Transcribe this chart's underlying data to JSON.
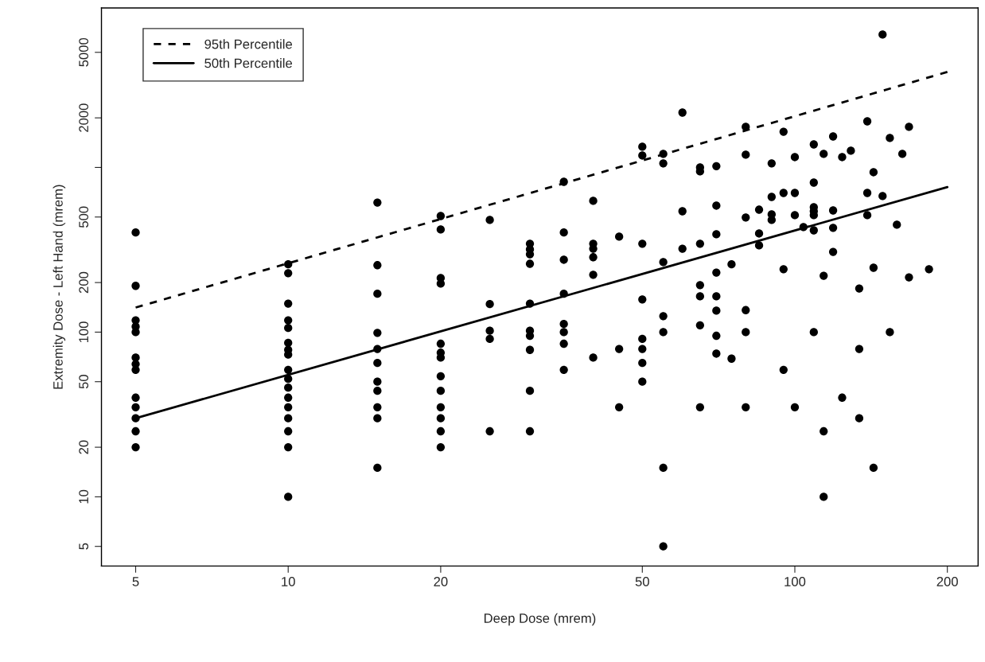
{
  "chart_data": {
    "type": "scatter",
    "xlabel": "Deep Dose (mrem)",
    "ylabel": "Extremity Dose - Left Hand (mrem)",
    "log": "xy",
    "xlim": [
      4.28,
      230
    ],
    "ylim": [
      3.8,
      9300
    ],
    "xticks": [
      5,
      10,
      20,
      50,
      100,
      200
    ],
    "yticks": [
      5,
      10,
      20,
      50,
      100,
      200,
      500,
      {
        "value": 1000,
        "label": null
      },
      2000,
      5000
    ],
    "grid": false,
    "legend": "top left",
    "marker": "circle",
    "series": [
      {
        "color": "#000000",
        "x": [
          5,
          5,
          5,
          5,
          5,
          5,
          5,
          5,
          5,
          5,
          5,
          5,
          5,
          10,
          10,
          10,
          10,
          10,
          10,
          10,
          10,
          10,
          10,
          10,
          10,
          10,
          10,
          10,
          10,
          10,
          15,
          15,
          15,
          15,
          15,
          15,
          15,
          15,
          15,
          15,
          15,
          20,
          20,
          20,
          20,
          20,
          20,
          20,
          20,
          20,
          20,
          20,
          20,
          20,
          25,
          25,
          25,
          25,
          25,
          30,
          30,
          30,
          30,
          30,
          30,
          30,
          30,
          30,
          30,
          35,
          35,
          35,
          35,
          35,
          35,
          35,
          35,
          40,
          40,
          40,
          40,
          40,
          40,
          45,
          45,
          45,
          50,
          50,
          50,
          50,
          50,
          50,
          50,
          50,
          55,
          55,
          55,
          55,
          55,
          55,
          55,
          60,
          60,
          60,
          65,
          65,
          65,
          65,
          65,
          65,
          65,
          70,
          70,
          70,
          70,
          70,
          70,
          70,
          70,
          75,
          75,
          80,
          80,
          80,
          80,
          80,
          80,
          85,
          85,
          85,
          90,
          90,
          90,
          90,
          95,
          95,
          95,
          95,
          100,
          100,
          100,
          100,
          149,
          139,
          168,
          119,
          154,
          109,
          114,
          124,
          129,
          163,
          143,
          109,
          139,
          149,
          109,
          109,
          109,
          119,
          139,
          159,
          104,
          109,
          119,
          119,
          143,
          184,
          114,
          168,
          134,
          109,
          154,
          134,
          124,
          134,
          114,
          143,
          114
        ],
        "values": [
          403,
          191,
          118,
          108,
          100,
          70,
          64,
          59,
          40,
          35,
          30,
          25,
          20,
          258,
          228,
          149,
          118,
          106,
          86,
          78,
          73,
          59,
          52,
          46,
          40,
          35,
          30,
          25,
          20,
          10,
          612,
          255,
          171,
          99,
          79,
          65,
          50,
          44,
          35,
          30,
          15,
          507,
          420,
          213,
          197,
          85,
          75,
          70,
          54,
          44,
          35,
          30,
          25,
          20,
          480,
          148,
          102,
          91,
          25,
          344,
          318,
          297,
          260,
          149,
          102,
          95,
          78,
          44,
          25,
          818,
          403,
          275,
          171,
          112,
          100,
          85,
          59,
          627,
          344,
          321,
          285,
          223,
          70,
          380,
          79,
          35,
          1336,
          1181,
          344,
          158,
          91,
          79,
          65,
          50,
          1208,
          1058,
          266,
          125,
          100,
          15,
          5,
          2153,
          542,
          321,
          1000,
          946,
          344,
          193,
          165,
          110,
          35,
          1018,
          586,
          393,
          230,
          165,
          135,
          95,
          74,
          258,
          69,
          1763,
          1195,
          497,
          136,
          100,
          35,
          554,
          397,
          336,
          1058,
          662,
          519,
          480,
          1648,
          700,
          241,
          59,
          1155,
          700,
          513,
          35,
          6410,
          1905,
          1763,
          1542,
          1510,
          1380,
          1208,
          1155,
          1263,
          1208,
          935,
          809,
          700,
          670,
          573,
          542,
          513,
          548,
          513,
          449,
          434,
          415,
          430,
          307,
          246,
          241,
          220,
          215,
          184,
          100,
          100,
          79,
          40,
          30,
          25,
          15,
          10
        ]
      },
      {
        "type": "line",
        "name": "95th Percentile",
        "color": "#000000",
        "line_style": "dashed",
        "marker": "none",
        "x": [
          5,
          200
        ],
        "values": [
          141,
          3800
        ]
      },
      {
        "type": "line",
        "name": "50th Percentile",
        "color": "#000000",
        "line_style": "solid",
        "marker": "none",
        "x": [
          5,
          200
        ],
        "values": [
          30,
          760
        ]
      }
    ]
  }
}
